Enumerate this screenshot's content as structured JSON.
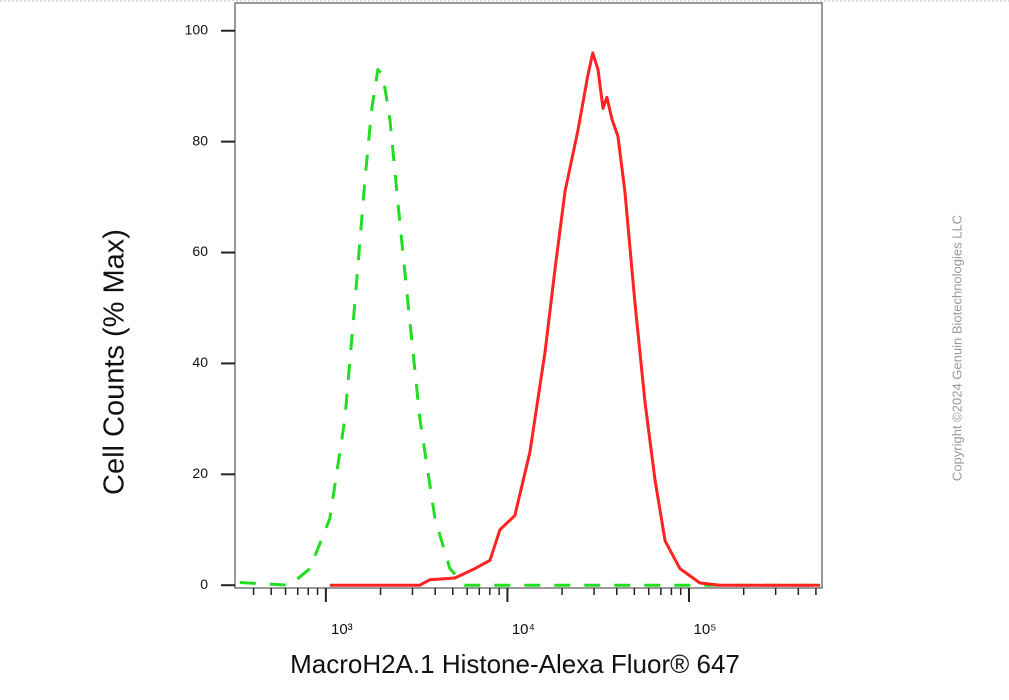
{
  "chart_data": {
    "type": "histogram-line",
    "xlabel": "MacroH2A.1 Histone-Alexa Fluor® 647",
    "ylabel": "Cell Counts (% Max)",
    "annotation": "Copyright ©2024 Genuin Biotechnologies LLC",
    "xscale": "log",
    "xlim": [
      316,
      540000
    ],
    "ylim": [
      -0.5,
      105
    ],
    "xticks": [
      {
        "value": 1000,
        "label": "10³"
      },
      {
        "value": 10000,
        "label": "10⁴"
      },
      {
        "value": 100000,
        "label": "10⁵"
      }
    ],
    "xminorticks": [
      400,
      500,
      600,
      700,
      800,
      900,
      2000,
      3000,
      4000,
      5000,
      6000,
      7000,
      8000,
      9000,
      20000,
      30000,
      40000,
      50000,
      60000,
      70000,
      80000,
      90000,
      200000,
      300000,
      400000,
      500000
    ],
    "yticks": [
      0,
      20,
      40,
      60,
      80,
      100
    ],
    "series": [
      {
        "color": "#22dd22",
        "dashed": true,
        "x": [
          336,
          634,
          817,
          1052,
          1273,
          1445,
          1640,
          1792,
          1935,
          2061,
          2253,
          2494,
          2831,
          3297,
          3989,
          4823,
          5834,
          32360,
          527000
        ],
        "values": [
          0.5,
          0,
          3,
          12,
          30,
          51,
          73,
          86,
          93,
          92,
          84,
          69,
          51,
          30,
          12,
          3,
          0,
          0,
          0
        ]
      },
      {
        "color": "#ff2222",
        "dashed": false,
        "x": [
          1052,
          3297,
          3741,
          5140,
          6622,
          8015,
          9091,
          10990,
          13300,
          16100,
          18270,
          20750,
          24440,
          27740,
          29530,
          31550,
          33580,
          35320,
          37670,
          40600,
          44380,
          50350,
          57250,
          65000,
          73800,
          89100,
          115000,
          148300,
          527000
        ],
        "values": [
          0,
          0,
          1,
          1.3,
          3,
          4.5,
          10,
          12.6,
          24,
          42,
          57,
          71,
          82,
          92,
          96,
          93,
          86,
          88,
          84,
          81,
          71,
          51,
          33,
          19,
          8,
          3,
          0.4,
          0,
          0
        ]
      }
    ]
  }
}
